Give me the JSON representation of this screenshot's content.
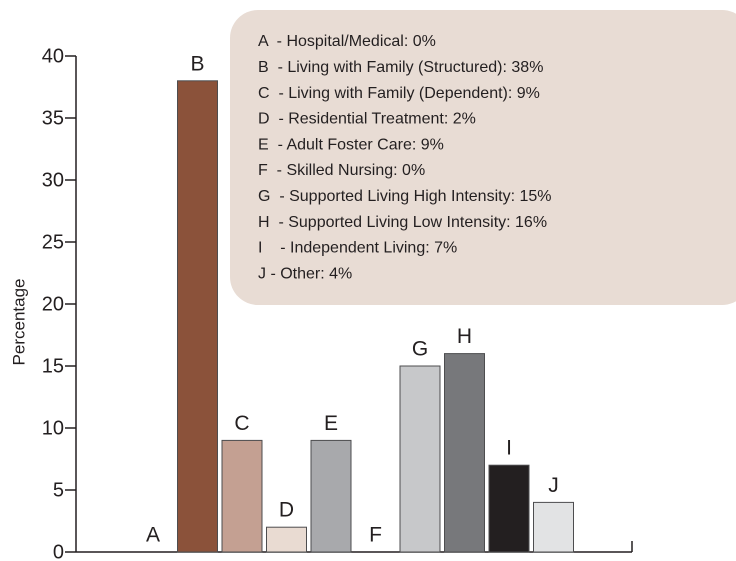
{
  "chart_data": {
    "type": "bar",
    "y_label": "Percentage",
    "categories": [
      "A",
      "B",
      "C",
      "D",
      "E",
      "F",
      "G",
      "H",
      "I",
      "J"
    ],
    "values": [
      0,
      38,
      9,
      2,
      9,
      0,
      15,
      16,
      7,
      4
    ],
    "colors": [
      "none",
      "#8b523a",
      "#c4a092",
      "#e9dbd2",
      "#a8a9ac",
      "none",
      "#c7c8ca",
      "#77787b",
      "#231f20",
      "#e2e3e4"
    ],
    "ylim": [
      0,
      40
    ],
    "yticks": [
      0,
      5,
      10,
      15,
      20,
      25,
      30,
      35,
      40
    ],
    "annotations": [
      "A  - Hospital/Medical: 0%",
      "B  - Living with Family (Structured): 38%",
      "C  - Living with Family (Dependent): 9%",
      "D  - Residential Treatment: 2%",
      "E  - Adult Foster Care: 9%",
      "F  - Skilled Nursing: 0%",
      "G  - Supported Living High Intensity: 15%",
      "H  - Supported Living Low Intensity: 16%",
      "I    - Independent Living: 7%",
      "J - Other: 4%"
    ]
  }
}
